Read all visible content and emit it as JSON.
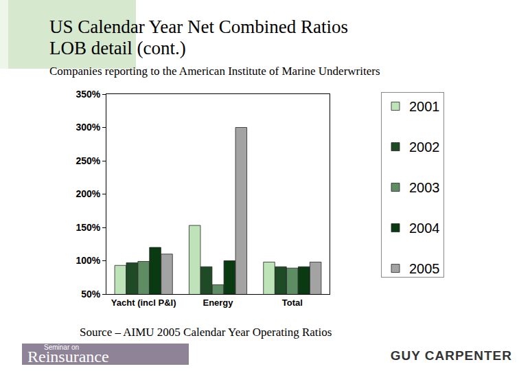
{
  "chart_data": {
    "type": "bar",
    "title": "US Calendar Year Net Combined Ratios\nLOB detail (cont.)",
    "subtitle": "Companies reporting to the American Institute of Marine Underwriters",
    "categories": [
      "Yacht (incl P&I)",
      "Energy",
      "Total"
    ],
    "series": [
      {
        "name": "2001",
        "color": "#bfe3b8",
        "values": [
          93,
          153,
          98
        ]
      },
      {
        "name": "2002",
        "color": "#1e4a26",
        "values": [
          97,
          91,
          91
        ]
      },
      {
        "name": "2003",
        "color": "#5f8d63",
        "values": [
          99,
          64,
          89
        ]
      },
      {
        "name": "2004",
        "color": "#093a12",
        "values": [
          120,
          100,
          91
        ]
      },
      {
        "name": "2005",
        "color": "#a3a3a3",
        "values": [
          110,
          300,
          98
        ]
      }
    ],
    "ylim": [
      50,
      350
    ],
    "yticks": [
      {
        "value": 50,
        "label": "50%"
      },
      {
        "value": 100,
        "label": "100%"
      },
      {
        "value": 150,
        "label": "150%"
      },
      {
        "value": 200,
        "label": "200%"
      },
      {
        "value": 250,
        "label": "250%"
      },
      {
        "value": 300,
        "label": "300%"
      },
      {
        "value": 350,
        "label": "350%"
      }
    ],
    "grid": false,
    "legend": "right",
    "annotations": [
      "Source – AIMU 2005 Calendar Year  Operating Ratios",
      "Seminar on",
      "Reinsurance",
      "GUY CARPENTER"
    ]
  }
}
